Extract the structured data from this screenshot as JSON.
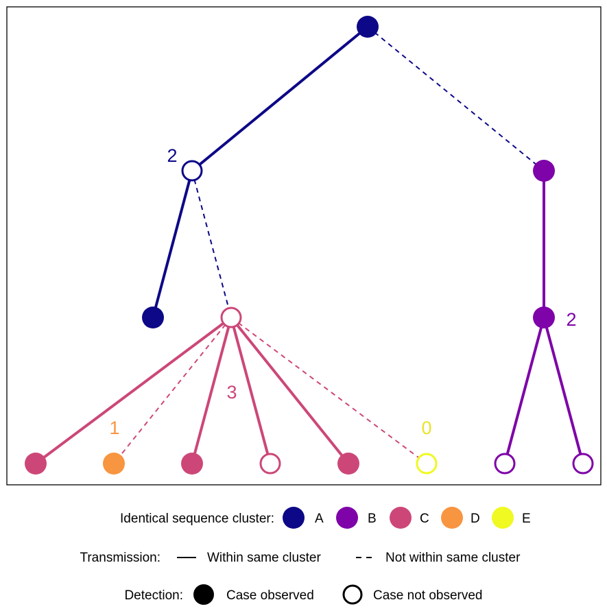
{
  "colors": {
    "A": "#0d0887",
    "B": "#7e03a8",
    "C": "#cc4778",
    "D": "#f89540",
    "E": "#f0f921",
    "E_label": "#e8e42a"
  },
  "tree": {
    "nodes": [
      {
        "id": "root",
        "cluster": "A",
        "observed": true
      },
      {
        "id": "a2",
        "cluster": "A",
        "observed": false,
        "label": "2"
      },
      {
        "id": "b1",
        "cluster": "B",
        "observed": true
      },
      {
        "id": "a3",
        "cluster": "A",
        "observed": true
      },
      {
        "id": "c_hub",
        "cluster": "C",
        "observed": false,
        "label": "3"
      },
      {
        "id": "b2",
        "cluster": "B",
        "observed": true,
        "label": "2"
      },
      {
        "id": "c1",
        "cluster": "C",
        "observed": true
      },
      {
        "id": "d1",
        "cluster": "D",
        "observed": true,
        "label": "1"
      },
      {
        "id": "c2",
        "cluster": "C",
        "observed": true
      },
      {
        "id": "c3",
        "cluster": "C",
        "observed": false
      },
      {
        "id": "c4",
        "cluster": "C",
        "observed": true
      },
      {
        "id": "e1",
        "cluster": "E",
        "observed": false,
        "label": "0"
      },
      {
        "id": "b3",
        "cluster": "B",
        "observed": false
      },
      {
        "id": "b4",
        "cluster": "B",
        "observed": false
      }
    ],
    "edges": [
      {
        "from": "root",
        "to": "a2",
        "same_cluster": true
      },
      {
        "from": "root",
        "to": "b1",
        "same_cluster": false
      },
      {
        "from": "a2",
        "to": "a3",
        "same_cluster": true
      },
      {
        "from": "a2",
        "to": "c_hub",
        "same_cluster": false
      },
      {
        "from": "b1",
        "to": "b2",
        "same_cluster": true
      },
      {
        "from": "c_hub",
        "to": "c1",
        "same_cluster": true
      },
      {
        "from": "c_hub",
        "to": "d1",
        "same_cluster": false
      },
      {
        "from": "c_hub",
        "to": "c2",
        "same_cluster": true
      },
      {
        "from": "c_hub",
        "to": "c3",
        "same_cluster": true
      },
      {
        "from": "c_hub",
        "to": "c4",
        "same_cluster": true
      },
      {
        "from": "c_hub",
        "to": "e1",
        "same_cluster": false
      },
      {
        "from": "b2",
        "to": "b3",
        "same_cluster": true
      },
      {
        "from": "b2",
        "to": "b4",
        "same_cluster": true
      }
    ]
  },
  "legend": {
    "cluster": {
      "title": "Identical sequence cluster:",
      "items": [
        {
          "label": "A",
          "cluster": "A"
        },
        {
          "label": "B",
          "cluster": "B"
        },
        {
          "label": "C",
          "cluster": "C"
        },
        {
          "label": "D",
          "cluster": "D"
        },
        {
          "label": "E",
          "cluster": "E"
        }
      ]
    },
    "transmission": {
      "title": "Transmission:",
      "within": "Within same cluster",
      "not_within": "Not within same cluster"
    },
    "detection": {
      "title": "Detection:",
      "observed": "Case observed",
      "not_observed": "Case not observed"
    }
  }
}
